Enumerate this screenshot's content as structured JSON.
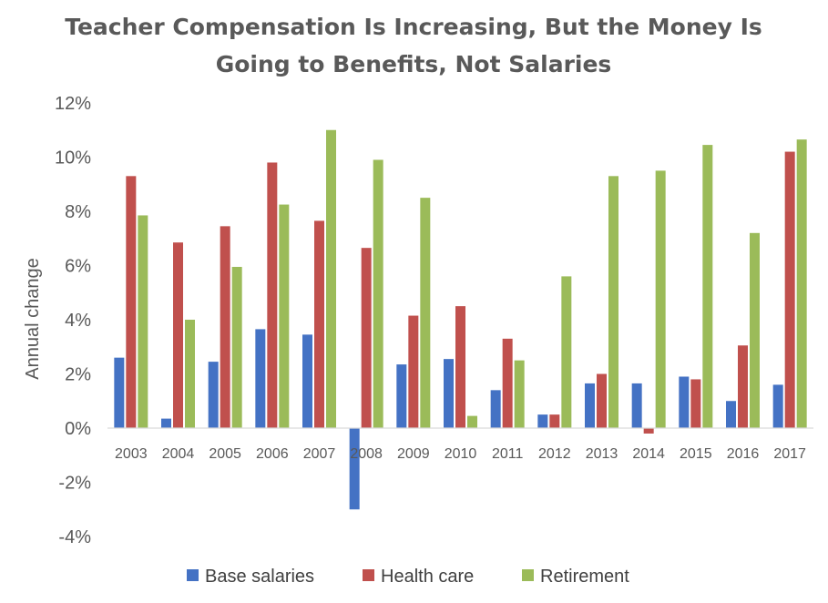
{
  "chart_data": {
    "type": "bar",
    "title_lines": [
      "Teacher Compensation Is Increasing, But the Money Is",
      "Going to Benefits, Not Salaries"
    ],
    "xlabel": "",
    "ylabel": "Annual change",
    "ylim": [
      -4,
      12
    ],
    "yticks": [
      -4,
      -2,
      0,
      2,
      4,
      6,
      8,
      10,
      12
    ],
    "ytick_labels": [
      "-4%",
      "-2%",
      "0%",
      "2%",
      "4%",
      "6%",
      "8%",
      "10%",
      "12%"
    ],
    "categories": [
      "2003",
      "2004",
      "2005",
      "2006",
      "2007",
      "2008",
      "2009",
      "2010",
      "2011",
      "2012",
      "2013",
      "2014",
      "2015",
      "2016",
      "2017"
    ],
    "series": [
      {
        "name": "Base salaries",
        "color": "#4472C4",
        "values": [
          2.6,
          0.35,
          2.45,
          3.65,
          3.45,
          -3.0,
          2.35,
          2.55,
          1.4,
          0.5,
          1.65,
          1.65,
          1.9,
          1.0,
          1.6
        ]
      },
      {
        "name": "Health care",
        "color": "#C0504D",
        "values": [
          9.3,
          6.85,
          7.45,
          9.8,
          7.65,
          6.65,
          4.15,
          4.5,
          3.3,
          0.5,
          2.0,
          -0.2,
          1.8,
          3.05,
          10.2
        ]
      },
      {
        "name": "Retirement",
        "color": "#9BBB59",
        "values": [
          7.85,
          4.0,
          5.95,
          8.25,
          11.0,
          9.9,
          8.5,
          0.45,
          2.5,
          5.6,
          9.3,
          9.5,
          10.45,
          7.2,
          10.65
        ]
      }
    ],
    "grid": false,
    "legend_position": "bottom"
  }
}
